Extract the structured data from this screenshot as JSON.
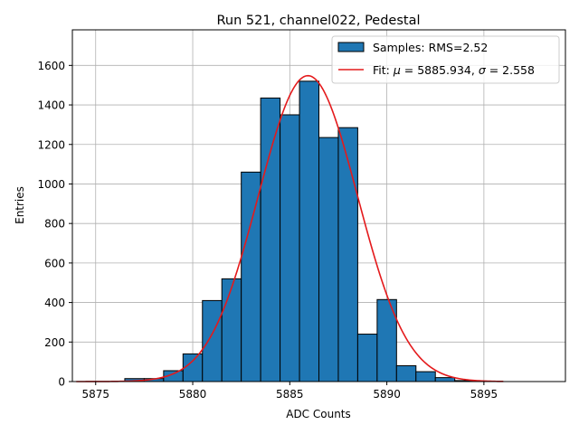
{
  "chart_data": {
    "type": "bar",
    "title": "Run 521, channel022, Pedestal",
    "xlabel": "ADC Counts",
    "ylabel": "Entries",
    "xlim": [
      5873.8,
      5899.2
    ],
    "ylim": [
      0,
      1780
    ],
    "xticks": [
      5875,
      5880,
      5885,
      5890,
      5895
    ],
    "yticks": [
      0,
      200,
      400,
      600,
      800,
      1000,
      1200,
      1400,
      1600
    ],
    "grid": true,
    "legend_position": "top-right",
    "colors": {
      "bar_fill": "#1f77b4",
      "bar_edge": "#000000",
      "fit_line": "#e41a1c",
      "grid": "#b0b0b0"
    },
    "histogram": {
      "name": "Samples: RMS=2.52",
      "bin_width": 1,
      "bins": [
        {
          "x": 5877,
          "count": 15
        },
        {
          "x": 5878,
          "count": 15
        },
        {
          "x": 5879,
          "count": 55
        },
        {
          "x": 5880,
          "count": 140
        },
        {
          "x": 5881,
          "count": 410
        },
        {
          "x": 5882,
          "count": 520
        },
        {
          "x": 5883,
          "count": 1060
        },
        {
          "x": 5884,
          "count": 1435
        },
        {
          "x": 5885,
          "count": 1350
        },
        {
          "x": 5886,
          "count": 1520
        },
        {
          "x": 5887,
          "count": 1235
        },
        {
          "x": 5888,
          "count": 1285
        },
        {
          "x": 5889,
          "count": 240
        },
        {
          "x": 5890,
          "count": 415
        },
        {
          "x": 5891,
          "count": 80
        },
        {
          "x": 5892,
          "count": 50
        },
        {
          "x": 5893,
          "count": 20
        },
        {
          "x": 5894,
          "count": 5
        }
      ]
    },
    "fit": {
      "label_prefix": "Fit: ",
      "mu_symbol": "μ",
      "sigma_symbol": "σ",
      "mu_text": " = 5885.934, ",
      "sigma_text": " = 2.558",
      "mu": 5885.934,
      "sigma": 2.558,
      "amplitude": 1548,
      "x_range": [
        5874,
        5896
      ]
    }
  }
}
